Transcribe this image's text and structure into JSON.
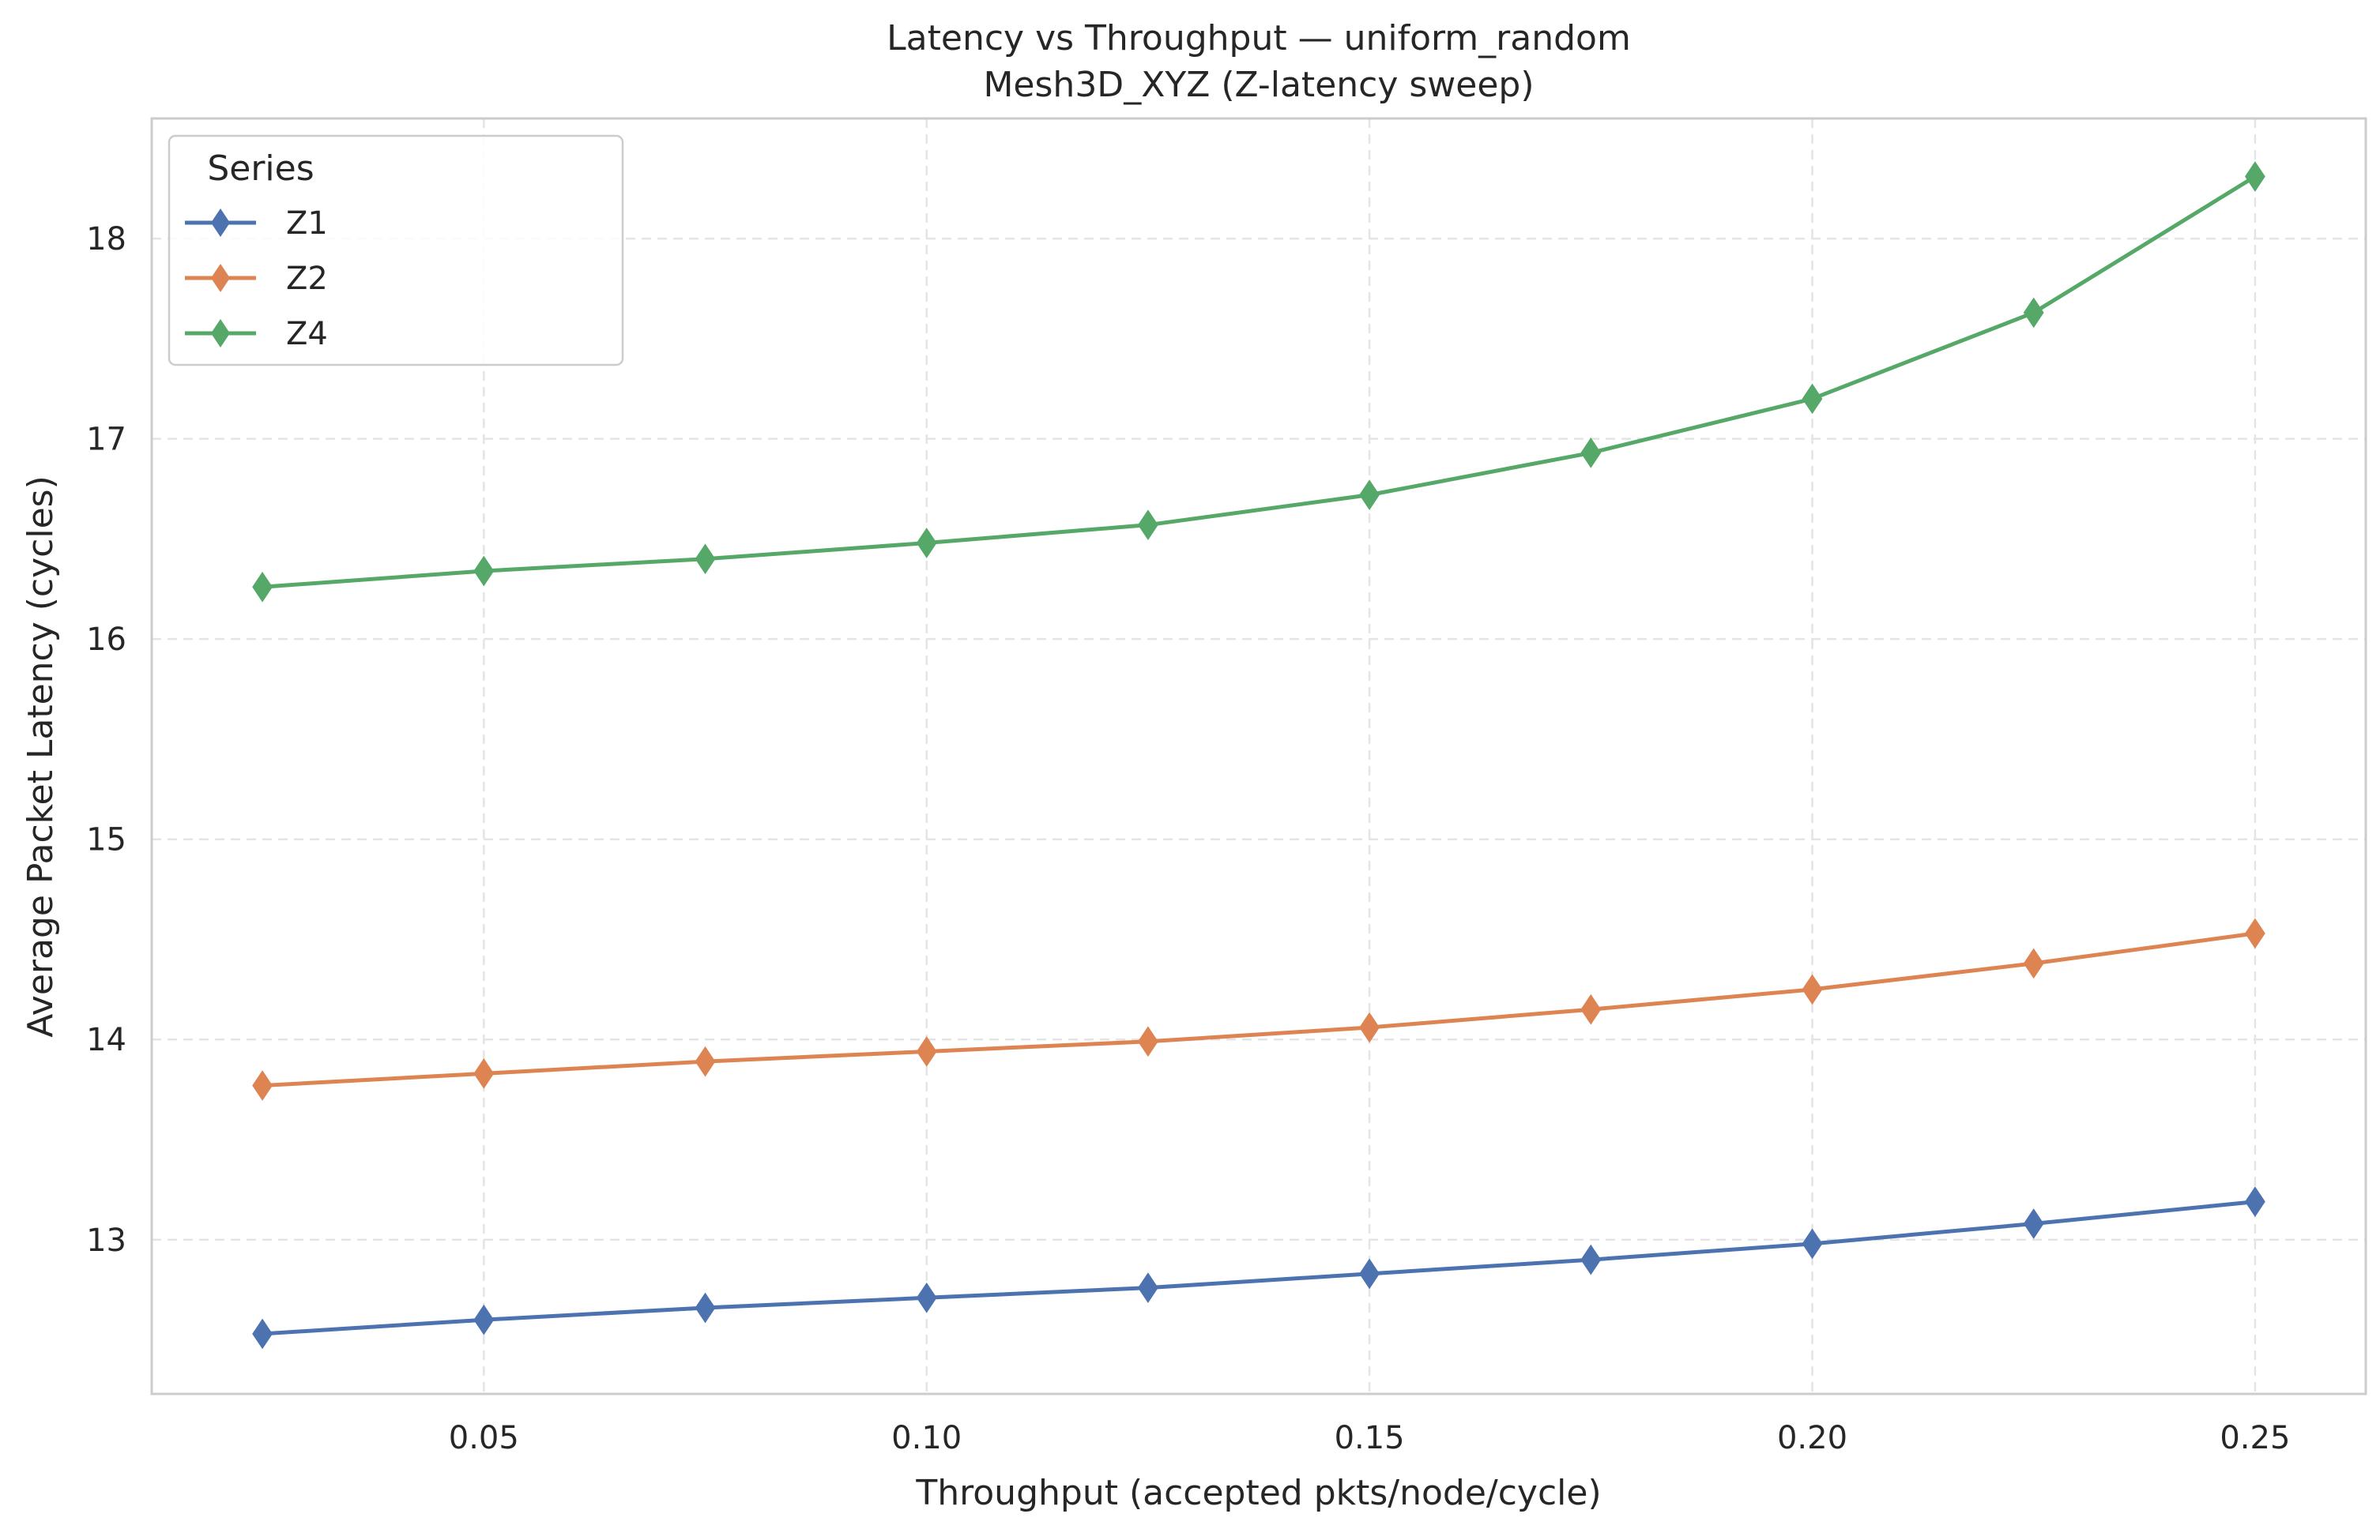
{
  "chart_data": {
    "type": "line",
    "title": "Latency vs Throughput — uniform_random",
    "subtitle": "Mesh3D_XYZ (Z-latency sweep)",
    "xlabel": "Throughput (accepted pkts/node/cycle)",
    "ylabel": "Average Packet Latency (cycles)",
    "xlim": [
      0.0125,
      0.2625
    ],
    "ylim": [
      12.23,
      18.6
    ],
    "xticks": [
      0.05,
      0.1,
      0.15,
      0.2,
      0.25
    ],
    "xtick_labels": [
      "0.05",
      "0.10",
      "0.15",
      "0.20",
      "0.25"
    ],
    "yticks": [
      13,
      14,
      15,
      16,
      17,
      18
    ],
    "ytick_labels": [
      "13",
      "14",
      "15",
      "16",
      "17",
      "18"
    ],
    "grid": true,
    "legend": {
      "title": "Series",
      "placement": "top-left"
    },
    "x": [
      0.025,
      0.05,
      0.075,
      0.1,
      0.125,
      0.15,
      0.175,
      0.2,
      0.225,
      0.25
    ],
    "series": [
      {
        "name": "Z1",
        "color": "#4c72b0",
        "marker": "diamond",
        "values": [
          12.53,
          12.6,
          12.66,
          12.71,
          12.76,
          12.83,
          12.9,
          12.98,
          13.08,
          13.19
        ]
      },
      {
        "name": "Z2",
        "color": "#dd8452",
        "marker": "diamond",
        "values": [
          13.77,
          13.83,
          13.89,
          13.94,
          13.99,
          14.06,
          14.15,
          14.25,
          14.38,
          14.53
        ]
      },
      {
        "name": "Z4",
        "color": "#55a868",
        "marker": "diamond",
        "values": [
          16.26,
          16.34,
          16.4,
          16.48,
          16.57,
          16.72,
          16.93,
          17.2,
          17.63,
          18.31
        ]
      }
    ]
  }
}
